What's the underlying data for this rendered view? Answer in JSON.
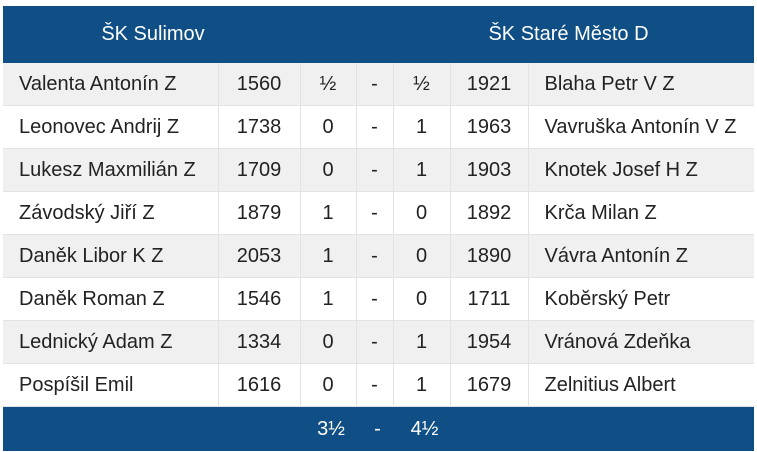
{
  "match": {
    "home_team": "ŠK Sulimov",
    "away_team": "ŠK Staré Město D"
  },
  "games": [
    {
      "home_player": "Valenta Antonín Z",
      "home_rating": "1560",
      "home_score": "½",
      "sep": "-",
      "away_score": "½",
      "away_rating": "1921",
      "away_player": "Blaha Petr V Z"
    },
    {
      "home_player": "Leonovec Andrij Z",
      "home_rating": "1738",
      "home_score": "0",
      "sep": "-",
      "away_score": "1",
      "away_rating": "1963",
      "away_player": "Vavruška Antonín V Z"
    },
    {
      "home_player": "Lukesz Maxmilián Z",
      "home_rating": "1709",
      "home_score": "0",
      "sep": "-",
      "away_score": "1",
      "away_rating": "1903",
      "away_player": "Knotek Josef H Z"
    },
    {
      "home_player": "Závodský Jiří Z",
      "home_rating": "1879",
      "home_score": "1",
      "sep": "-",
      "away_score": "0",
      "away_rating": "1892",
      "away_player": "Krča Milan Z"
    },
    {
      "home_player": "Daněk Libor K Z",
      "home_rating": "2053",
      "home_score": "1",
      "sep": "-",
      "away_score": "0",
      "away_rating": "1890",
      "away_player": "Vávra Antonín Z"
    },
    {
      "home_player": "Daněk Roman Z",
      "home_rating": "1546",
      "home_score": "1",
      "sep": "-",
      "away_score": "0",
      "away_rating": "1711",
      "away_player": "Kobĕrský Petr"
    },
    {
      "home_player": "Lednický Adam Z",
      "home_rating": "1334",
      "home_score": "0",
      "sep": "-",
      "away_score": "1",
      "away_rating": "1954",
      "away_player": "Vránová Zdeňka"
    },
    {
      "home_player": "Pospíšil Emil",
      "home_rating": "1616",
      "home_score": "0",
      "sep": "-",
      "away_score": "1",
      "away_rating": "1679",
      "away_player": "Zelnitius Albert"
    }
  ],
  "totals": {
    "home_total": "3½",
    "sep": "-",
    "away_total": "4½"
  },
  "colors": {
    "header_bg": "#0f4f85",
    "row_stripe": "#f0f0f0",
    "text": "#222222"
  }
}
